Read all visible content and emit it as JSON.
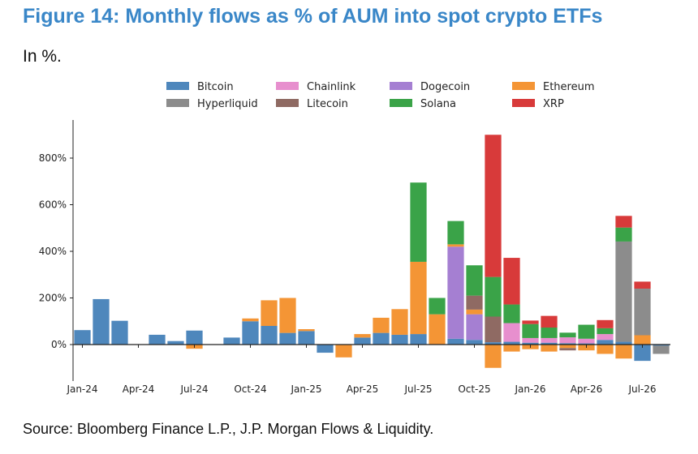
{
  "header": {
    "title": "Figure 14: Monthly flows as % of AUM into spot crypto ETFs",
    "subtitle": "In %.",
    "source": "Source: Bloomberg Finance L.P., J.P. Morgan Flows & Liquidity."
  },
  "chart_data": {
    "type": "bar",
    "stacked": true,
    "title": "",
    "xlabel": "",
    "ylabel": "",
    "ylim": [
      -130,
      950
    ],
    "yticks": [
      0,
      200,
      400,
      600,
      800
    ],
    "ytick_labels": [
      "0%",
      "200%",
      "400%",
      "600%",
      "800%"
    ],
    "grid": false,
    "legend_position": "top",
    "categories": [
      "Jan-24",
      "Feb-24",
      "Mar-24",
      "Apr-24",
      "May-24",
      "Jun-24",
      "Jul-24",
      "Aug-24",
      "Sep-24",
      "Oct-24",
      "Nov-24",
      "Dec-24",
      "Jan-25",
      "Feb-25",
      "Mar-25",
      "Apr-25",
      "May-25",
      "Jun-25",
      "Jul-25",
      "Aug-25",
      "Sep-25",
      "Oct-25",
      "Nov-25",
      "Dec-25",
      "Jan-26",
      "Feb-26",
      "Mar-26",
      "Apr-26",
      "May-26",
      "Jun-26",
      "Jul-26",
      "Aug-26"
    ],
    "xtick_labels": [
      {
        "index": 0,
        "label": "Jan-24"
      },
      {
        "index": 3,
        "label": "Apr-24"
      },
      {
        "index": 6,
        "label": "Jul-24"
      },
      {
        "index": 9,
        "label": "Oct-24"
      },
      {
        "index": 12,
        "label": "Jan-25"
      },
      {
        "index": 15,
        "label": "Apr-25"
      },
      {
        "index": 18,
        "label": "Jul-25"
      },
      {
        "index": 21,
        "label": "Oct-25"
      },
      {
        "index": 24,
        "label": "Jan-26"
      },
      {
        "index": 27,
        "label": "Apr-26"
      },
      {
        "index": 30,
        "label": "Jul-26"
      }
    ],
    "series": [
      {
        "name": "Bitcoin",
        "color": "#4e87bc",
        "values": [
          62,
          195,
          102,
          0,
          42,
          15,
          60,
          0,
          30,
          100,
          80,
          50,
          58,
          -35,
          0,
          30,
          50,
          42,
          45,
          0,
          25,
          20,
          10,
          12,
          8,
          8,
          6,
          5,
          20,
          12,
          -70,
          -5
        ]
      },
      {
        "name": "Chainlink",
        "color": "#e78fce",
        "values": [
          0,
          0,
          0,
          0,
          0,
          0,
          0,
          0,
          0,
          0,
          0,
          0,
          0,
          0,
          0,
          0,
          0,
          0,
          0,
          0,
          0,
          0,
          0,
          80,
          20,
          20,
          25,
          20,
          25,
          0,
          0,
          0
        ]
      },
      {
        "name": "Dogecoin",
        "color": "#a57fd2",
        "values": [
          0,
          0,
          0,
          0,
          0,
          0,
          0,
          0,
          0,
          0,
          0,
          0,
          0,
          0,
          0,
          0,
          0,
          0,
          0,
          0,
          395,
          110,
          0,
          0,
          0,
          0,
          0,
          0,
          0,
          0,
          0,
          0
        ]
      },
      {
        "name": "Ethereum",
        "color": "#f49535",
        "values": [
          0,
          0,
          0,
          0,
          0,
          0,
          -18,
          0,
          0,
          12,
          110,
          150,
          8,
          0,
          -55,
          15,
          65,
          110,
          310,
          130,
          10,
          20,
          -100,
          -30,
          -20,
          -30,
          -15,
          -25,
          -40,
          -60,
          40,
          0
        ]
      },
      {
        "name": "Hyperliquid",
        "color": "#8c8c8c",
        "values": [
          0,
          0,
          0,
          0,
          0,
          0,
          0,
          0,
          0,
          0,
          0,
          0,
          0,
          0,
          0,
          0,
          0,
          0,
          0,
          0,
          0,
          0,
          0,
          0,
          0,
          0,
          0,
          0,
          0,
          430,
          200,
          -35
        ]
      },
      {
        "name": "Litecoin",
        "color": "#8f6a63",
        "values": [
          0,
          0,
          0,
          0,
          0,
          0,
          0,
          0,
          0,
          0,
          0,
          0,
          0,
          0,
          0,
          0,
          0,
          0,
          0,
          0,
          0,
          60,
          110,
          0,
          0,
          0,
          -10,
          0,
          0,
          0,
          0,
          0
        ]
      },
      {
        "name": "Solana",
        "color": "#3aa348",
        "values": [
          0,
          0,
          0,
          0,
          0,
          0,
          0,
          0,
          0,
          0,
          0,
          0,
          0,
          0,
          0,
          0,
          0,
          0,
          340,
          70,
          100,
          130,
          170,
          80,
          60,
          45,
          20,
          60,
          25,
          60,
          0,
          0
        ]
      },
      {
        "name": "XRP",
        "color": "#d83a3a",
        "values": [
          0,
          0,
          0,
          0,
          0,
          0,
          0,
          0,
          0,
          0,
          0,
          0,
          0,
          0,
          0,
          0,
          0,
          0,
          0,
          0,
          0,
          0,
          610,
          200,
          15,
          50,
          0,
          0,
          35,
          50,
          30,
          0
        ]
      }
    ]
  }
}
